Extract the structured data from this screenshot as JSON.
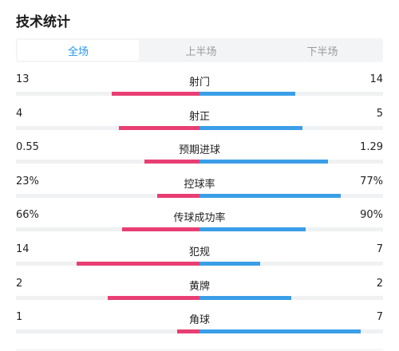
{
  "title": "技术统计",
  "tabs": [
    {
      "label": "全场",
      "active": true
    },
    {
      "label": "上半场",
      "active": false
    },
    {
      "label": "下半场",
      "active": false
    }
  ],
  "colors": {
    "home": "#e83e73",
    "away": "#3a9ee8",
    "active_tab": "#2196f3"
  },
  "stats": [
    {
      "label": "射门",
      "home": "13",
      "away": "14",
      "home_share": 0.48,
      "away_share": 0.52
    },
    {
      "label": "射正",
      "home": "4",
      "away": "5",
      "home_share": 0.44,
      "away_share": 0.56
    },
    {
      "label": "预期进球",
      "home": "0.55",
      "away": "1.29",
      "home_share": 0.3,
      "away_share": 0.7
    },
    {
      "label": "控球率",
      "home": "23%",
      "away": "77%",
      "home_share": 0.23,
      "away_share": 0.77
    },
    {
      "label": "传球成功率",
      "home": "66%",
      "away": "90%",
      "home_share": 0.42,
      "away_share": 0.58
    },
    {
      "label": "犯规",
      "home": "14",
      "away": "7",
      "home_share": 0.67,
      "away_share": 0.33
    },
    {
      "label": "黄牌",
      "home": "2",
      "away": "2",
      "home_share": 0.5,
      "away_share": 0.5
    },
    {
      "label": "角球",
      "home": "1",
      "away": "7",
      "home_share": 0.12,
      "away_share": 0.88
    }
  ]
}
